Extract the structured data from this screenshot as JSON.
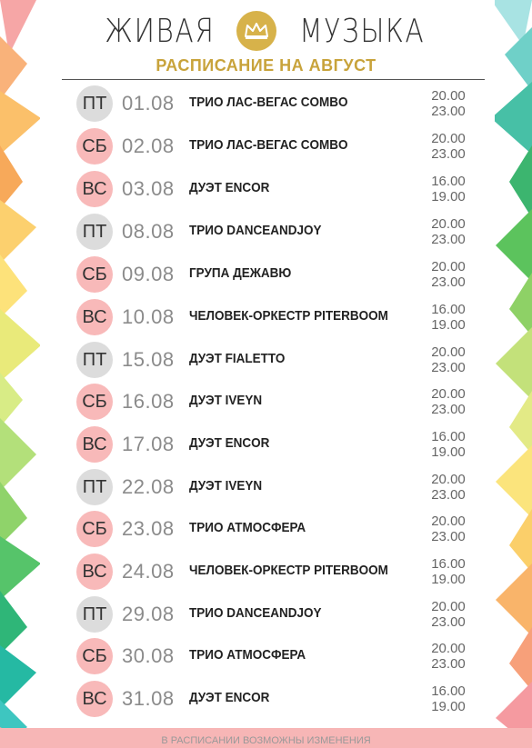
{
  "header": {
    "title_left": "ЖИВАЯ",
    "title_right": "МУЗЫКА",
    "subtitle": "РАСПИСАНИЕ НА АВГУСТ"
  },
  "colors": {
    "gold": "#c8a33b",
    "weekday_badge": "#dcdcdc",
    "weekend_badge": "#f8b9b9"
  },
  "schedule": [
    {
      "day": "ПТ",
      "date": "01.08",
      "act": "ТРИО ЛАС-ВЕГАС COMBO",
      "start": "20.00",
      "end": "23.00"
    },
    {
      "day": "СБ",
      "date": "02.08",
      "act": "ТРИО ЛАС-ВЕГАС COMBO",
      "start": "20.00",
      "end": "23.00"
    },
    {
      "day": "ВС",
      "date": "03.08",
      "act": "ДУЭТ ENCOR",
      "start": "16.00",
      "end": "19.00"
    },
    {
      "day": "ПТ",
      "date": "08.08",
      "act": "ТРИО DANCEANDJOY",
      "start": "20.00",
      "end": "23.00"
    },
    {
      "day": "СБ",
      "date": "09.08",
      "act": "ГРУПА ДЕЖАВЮ",
      "start": "20.00",
      "end": "23.00"
    },
    {
      "day": "ВС",
      "date": "10.08",
      "act": "ЧЕЛОВЕК-ОРКЕСТР PITERBOOM",
      "start": "16.00",
      "end": "19.00"
    },
    {
      "day": "ПТ",
      "date": "15.08",
      "act": "ДУЭТ FIALETTO",
      "start": "20.00",
      "end": "23.00"
    },
    {
      "day": "СБ",
      "date": "16.08",
      "act": "ДУЭТ IVEYN",
      "start": "20.00",
      "end": "23.00"
    },
    {
      "day": "ВС",
      "date": "17.08",
      "act": "ДУЭТ ENCOR",
      "start": "16.00",
      "end": "19.00"
    },
    {
      "day": "ПТ",
      "date": "22.08",
      "act": "ДУЭТ IVEYN",
      "start": "20.00",
      "end": "23.00"
    },
    {
      "day": "СБ",
      "date": "23.08",
      "act": "ТРИО АТМОСФЕРА",
      "start": "20.00",
      "end": "23.00"
    },
    {
      "day": "ВС",
      "date": "24.08",
      "act": "ЧЕЛОВЕК-ОРКЕСТР PITERBOOM",
      "start": "16.00",
      "end": "19.00"
    },
    {
      "day": "ПТ",
      "date": "29.08",
      "act": "ТРИО DANCEANDJOY",
      "start": "20.00",
      "end": "23.00"
    },
    {
      "day": "СБ",
      "date": "30.08",
      "act": "ТРИО АТМОСФЕРА",
      "start": "20.00",
      "end": "23.00"
    },
    {
      "day": "ВС",
      "date": "31.08",
      "act": "ДУЭТ ENCOR",
      "start": "16.00",
      "end": "19.00"
    }
  ],
  "footer": "В РАСПИСАНИИ ВОЗМОЖНЫ ИЗМЕНЕНИЯ"
}
